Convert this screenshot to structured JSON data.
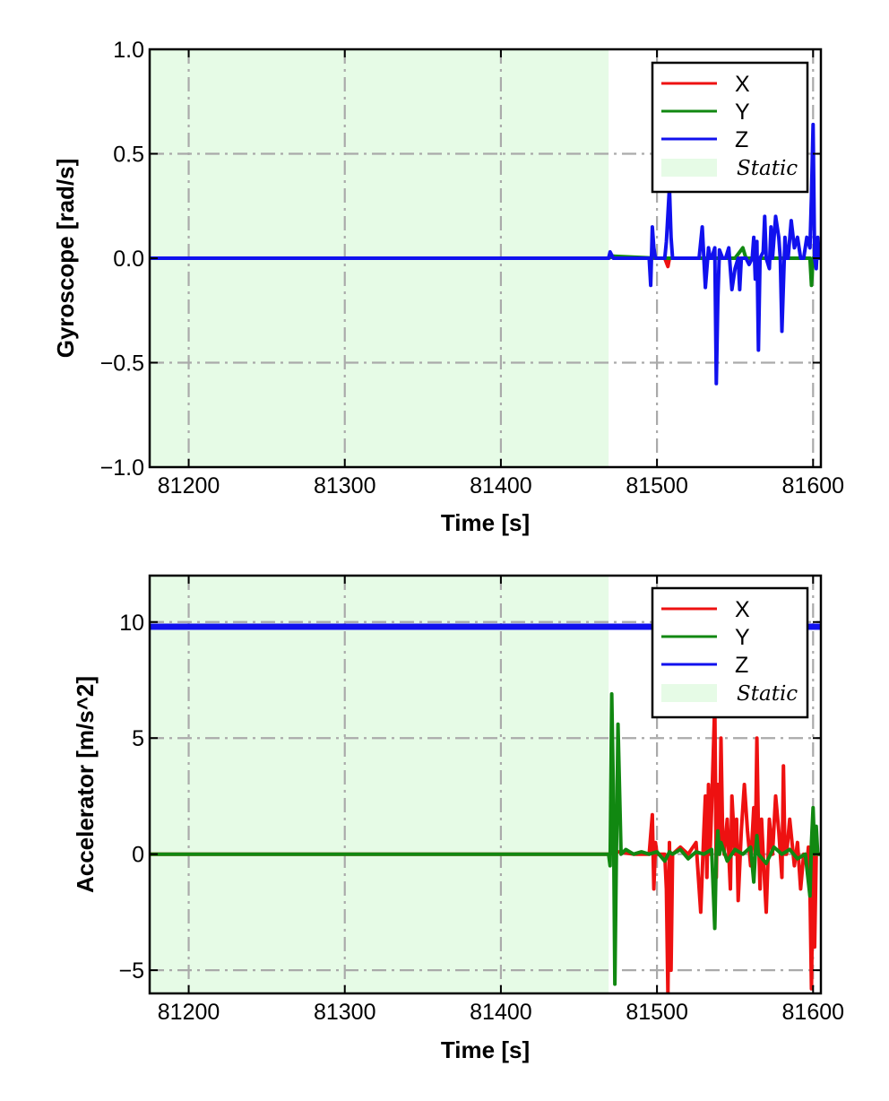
{
  "chart_data": [
    {
      "type": "line",
      "xlabel": "Time [s]",
      "ylabel": "Gyroscope [rad/s]",
      "xlim": [
        81175,
        81605
      ],
      "ylim": [
        -1.0,
        1.0
      ],
      "xticks": [
        81200,
        81300,
        81400,
        81500,
        81600
      ],
      "xtick_labels": [
        "81200",
        "81300",
        "81400",
        "81500",
        "81600"
      ],
      "yticks": [
        -1.0,
        -0.5,
        0.0,
        0.5,
        1.0
      ],
      "ytick_labels": [
        "−1.0",
        "−0.5",
        "0.0",
        "0.5",
        "1.0"
      ],
      "grid": true,
      "legend_position": "top-right",
      "static_region": {
        "label": "Static",
        "x_start": 81175,
        "x_end": 81469,
        "color": "#e6fbe6"
      },
      "series": [
        {
          "name": "X",
          "color": "#ee1111",
          "x": [
            81175,
            81469,
            81472,
            81480,
            81495,
            81500,
            81505,
            81507,
            81508,
            81510,
            81520,
            81535,
            81540,
            81545,
            81555,
            81570,
            81590,
            81598,
            81600,
            81602,
            81605
          ],
          "y": [
            0.0,
            0.0,
            0.01,
            0.0,
            0.0,
            0.0,
            0.0,
            -0.04,
            0.0,
            0.0,
            0.0,
            0.0,
            0.0,
            0.0,
            0.0,
            0.0,
            0.0,
            0.0,
            -0.01,
            0.0,
            0.0
          ]
        },
        {
          "name": "Y",
          "color": "#118811",
          "x": [
            81175,
            81469,
            81472,
            81500,
            81530,
            81550,
            81555,
            81557,
            81560,
            81580,
            81595,
            81598,
            81599,
            81600,
            81601,
            81603,
            81605
          ],
          "y": [
            0.0,
            0.0,
            0.01,
            0.0,
            0.0,
            0.0,
            0.05,
            0.0,
            0.0,
            0.0,
            0.0,
            0.0,
            -0.13,
            0.0,
            0.0,
            0.0,
            0.0
          ]
        },
        {
          "name": "Z",
          "color": "#1111ee",
          "x": [
            81175,
            81469,
            81470,
            81472,
            81490,
            81495,
            81496,
            81497,
            81498,
            81499,
            81500,
            81505,
            81506,
            81508,
            81509,
            81510,
            81515,
            81520,
            81527,
            81529,
            81531,
            81533,
            81534,
            81535,
            81537,
            81538,
            81539,
            81540,
            81542,
            81544,
            81546,
            81548,
            81550,
            81552,
            81553,
            81554,
            81555,
            81557,
            81559,
            81561,
            81562,
            81563,
            81564,
            81565,
            81566,
            81568,
            81569,
            81570,
            81572,
            81573,
            81574,
            81576,
            81578,
            81579,
            81580,
            81582,
            81583,
            81584,
            81586,
            81588,
            81590,
            81592,
            81594,
            81596,
            81598,
            81599,
            81600,
            81601,
            81602,
            81603,
            81604,
            81605
          ],
          "y": [
            0.0,
            0.0,
            0.03,
            0.0,
            0.0,
            0.0,
            -0.13,
            0.15,
            0.05,
            0.0,
            0.0,
            0.0,
            0.08,
            0.34,
            0.1,
            0.0,
            0.0,
            0.0,
            0.0,
            0.15,
            -0.14,
            0.05,
            0.0,
            0.0,
            0.05,
            -0.6,
            -0.2,
            0.04,
            0.0,
            0.0,
            0.05,
            -0.15,
            -0.05,
            0.0,
            -0.15,
            0.0,
            0.0,
            0.0,
            -0.03,
            0.0,
            0.1,
            -0.1,
            0.08,
            -0.44,
            0.0,
            0.03,
            0.2,
            0.0,
            -0.05,
            0.15,
            0.0,
            0.2,
            0.1,
            0.0,
            -0.35,
            0.1,
            0.0,
            0.0,
            0.18,
            0.05,
            0.1,
            0.0,
            0.0,
            0.1,
            0.05,
            0.3,
            0.64,
            0.0,
            -0.05,
            0.1,
            0.0,
            0.0
          ]
        }
      ]
    },
    {
      "type": "line",
      "xlabel": "Time [s]",
      "ylabel": "Accelerator [m/s^2]",
      "xlim": [
        81175,
        81605
      ],
      "ylim": [
        -6,
        12
      ],
      "xticks": [
        81200,
        81300,
        81400,
        81500,
        81600
      ],
      "xtick_labels": [
        "81200",
        "81300",
        "81400",
        "81500",
        "81600"
      ],
      "yticks": [
        -5,
        0,
        5,
        10
      ],
      "ytick_labels": [
        "−5",
        "0",
        "5",
        "10"
      ],
      "grid": true,
      "legend_position": "top-right",
      "static_region": {
        "label": "Static",
        "x_start": 81175,
        "x_end": 81469,
        "color": "#e6fbe6"
      },
      "series": [
        {
          "name": "X",
          "color": "#ee1111",
          "x": [
            81175,
            81469,
            81475,
            81485,
            81495,
            81497,
            81498,
            81499,
            81500,
            81505,
            81506,
            81507,
            81508,
            81509,
            81510,
            81515,
            81520,
            81525,
            81528,
            81530,
            81531,
            81532,
            81533,
            81534,
            81535,
            81537,
            81538,
            81539,
            81540,
            81541,
            81542,
            81543,
            81545,
            81547,
            81548,
            81550,
            81551,
            81552,
            81554,
            81556,
            81558,
            81560,
            81562,
            81563,
            81564,
            81565,
            81566,
            81567,
            81568,
            81570,
            81572,
            81574,
            81576,
            81578,
            81580,
            81581,
            81582,
            81583,
            81585,
            81588,
            81590,
            81592,
            81594,
            81596,
            81597,
            81598,
            81599,
            81600,
            81601,
            81602,
            81603,
            81604,
            81605
          ],
          "y": [
            0.0,
            0.0,
            0.1,
            0.0,
            0.0,
            1.7,
            -1.5,
            0.5,
            0.0,
            0.0,
            -1.5,
            -6.0,
            0.5,
            -5.0,
            0.0,
            0.3,
            0.0,
            0.5,
            -2.5,
            1.0,
            2.5,
            -1.0,
            3.0,
            0.0,
            2.0,
            6.5,
            -1.0,
            3.0,
            0.0,
            5.0,
            1.0,
            0.0,
            1.5,
            -1.5,
            2.5,
            0.0,
            1.5,
            -2.0,
            1.0,
            3.0,
            1.0,
            -0.5,
            2.0,
            0.0,
            5.0,
            1.0,
            -1.5,
            1.5,
            0.0,
            -2.5,
            1.5,
            0.0,
            2.5,
            1.0,
            -1.0,
            3.8,
            0.0,
            0.0,
            1.5,
            -0.5,
            0.5,
            -1.5,
            0.0,
            -0.5,
            0.3,
            -1.5,
            -5.8,
            0.0,
            -4.0,
            0.0,
            0.0,
            0.0,
            0.0
          ]
        },
        {
          "name": "Y",
          "color": "#118811",
          "x": [
            81175,
            81469,
            81470,
            81471,
            81472,
            81473,
            81474,
            81475,
            81477,
            81480,
            81485,
            81490,
            81495,
            81500,
            81505,
            81508,
            81510,
            81515,
            81520,
            81525,
            81530,
            81535,
            81537,
            81538,
            81539,
            81540,
            81541,
            81545,
            81550,
            81555,
            81560,
            81562,
            81563,
            81564,
            81565,
            81570,
            81575,
            81580,
            81585,
            81590,
            81595,
            81598,
            81599,
            81600,
            81601,
            81602,
            81603,
            81605
          ],
          "y": [
            0.0,
            0.0,
            -0.5,
            6.9,
            3.0,
            -5.6,
            0.0,
            5.6,
            0.0,
            0.2,
            0.0,
            0.1,
            0.0,
            0.1,
            -0.3,
            0.1,
            0.0,
            0.2,
            -0.2,
            0.1,
            0.0,
            0.2,
            -3.2,
            0.0,
            1.0,
            0.0,
            0.5,
            -0.3,
            0.2,
            0.0,
            0.3,
            -1.2,
            0.0,
            0.8,
            0.0,
            -0.4,
            0.3,
            0.0,
            0.2,
            -0.2,
            0.0,
            -1.8,
            0.5,
            2.0,
            0.0,
            1.2,
            0.0,
            0.0
          ]
        },
        {
          "name": "Z",
          "color": "#1111ee",
          "x": [
            81175,
            81300,
            81400,
            81469,
            81500,
            81550,
            81605
          ],
          "y": [
            9.8,
            9.8,
            9.8,
            9.8,
            9.8,
            9.8,
            9.8
          ]
        }
      ]
    }
  ]
}
